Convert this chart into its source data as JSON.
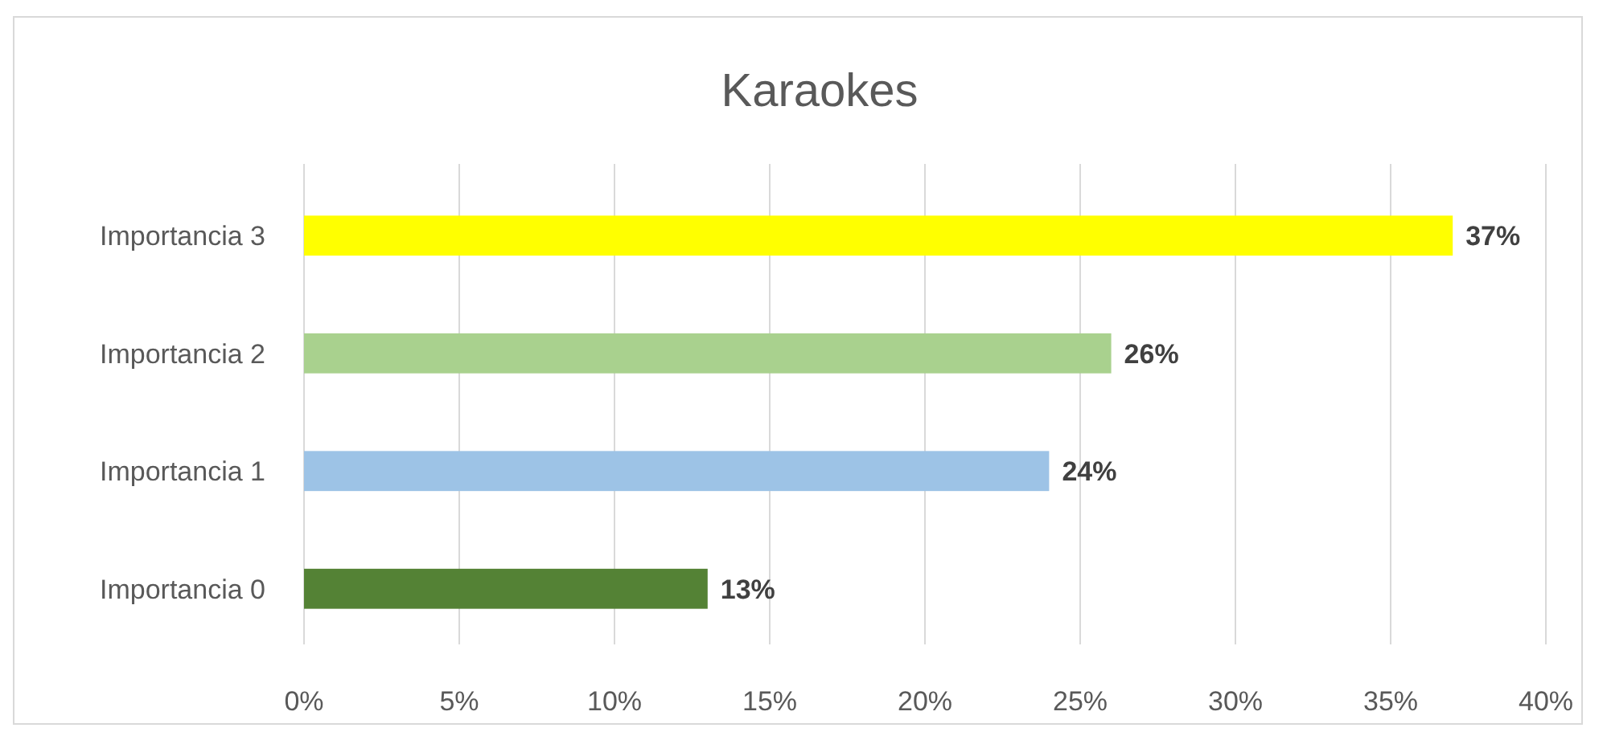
{
  "chart_data": {
    "type": "bar",
    "orientation": "horizontal",
    "title": "Karaokes",
    "categories": [
      "Importancia 3",
      "Importancia 2",
      "Importancia 1",
      "Importancia 0"
    ],
    "values": [
      37,
      26,
      24,
      13
    ],
    "colors": [
      "#ffff00",
      "#a9d18e",
      "#9dc3e6",
      "#548235"
    ],
    "xlim": [
      0,
      40
    ],
    "xticks": [
      {
        "value": 0,
        "label": "0%"
      },
      {
        "value": 5,
        "label": "5%"
      },
      {
        "value": 10,
        "label": "10%"
      },
      {
        "value": 15,
        "label": "15%"
      },
      {
        "value": 20,
        "label": "20%"
      },
      {
        "value": 25,
        "label": "25%"
      },
      {
        "value": 30,
        "label": "30%"
      },
      {
        "value": 35,
        "label": "35%"
      },
      {
        "value": 40,
        "label": "40%"
      }
    ],
    "value_labels": [
      "37%",
      "26%",
      "24%",
      "13%"
    ],
    "grid": "x"
  }
}
